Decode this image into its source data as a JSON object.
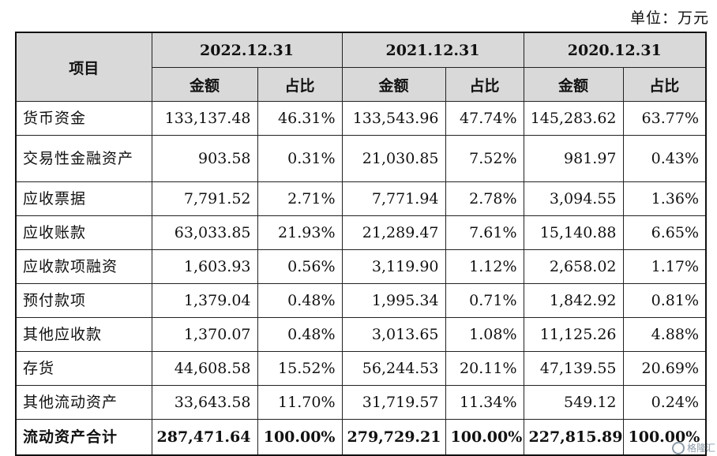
{
  "unit_label": "单位：万元",
  "header": {
    "item": "项目",
    "periods": [
      "2022.12.31",
      "2021.12.31",
      "2020.12.31"
    ],
    "amount": "金额",
    "ratio": "占比"
  },
  "rows": [
    {
      "item": "货币资金",
      "v": [
        "133,137.48",
        "46.31%",
        "133,543.96",
        "47.74%",
        "145,283.62",
        "63.77%"
      ]
    },
    {
      "item": "交易性金融资产",
      "v": [
        "903.58",
        "0.31%",
        "21,030.85",
        "7.52%",
        "981.97",
        "0.43%"
      ]
    },
    {
      "item": "应收票据",
      "v": [
        "7,791.52",
        "2.71%",
        "7,771.94",
        "2.78%",
        "3,094.55",
        "1.36%"
      ]
    },
    {
      "item": "应收账款",
      "v": [
        "63,033.85",
        "21.93%",
        "21,289.47",
        "7.61%",
        "15,140.88",
        "6.65%"
      ]
    },
    {
      "item": "应收款项融资",
      "v": [
        "1,603.93",
        "0.56%",
        "3,119.90",
        "1.12%",
        "2,658.02",
        "1.17%"
      ]
    },
    {
      "item": "预付款项",
      "v": [
        "1,379.04",
        "0.48%",
        "1,995.34",
        "0.71%",
        "1,842.92",
        "0.81%"
      ]
    },
    {
      "item": "其他应收款",
      "v": [
        "1,370.07",
        "0.48%",
        "3,013.65",
        "1.08%",
        "11,125.26",
        "4.88%"
      ]
    },
    {
      "item": "存货",
      "v": [
        "44,608.58",
        "15.52%",
        "56,244.53",
        "20.11%",
        "47,139.55",
        "20.69%"
      ]
    },
    {
      "item": "其他流动资产",
      "v": [
        "33,643.58",
        "11.70%",
        "31,719.57",
        "11.34%",
        "549.12",
        "0.24%"
      ]
    },
    {
      "item": "流动资产合计",
      "v": [
        "287,471.64",
        "100.00%",
        "279,729.21",
        "100.00%",
        "227,815.89",
        "100.00%"
      ]
    }
  ],
  "watermark": "格隆汇"
}
